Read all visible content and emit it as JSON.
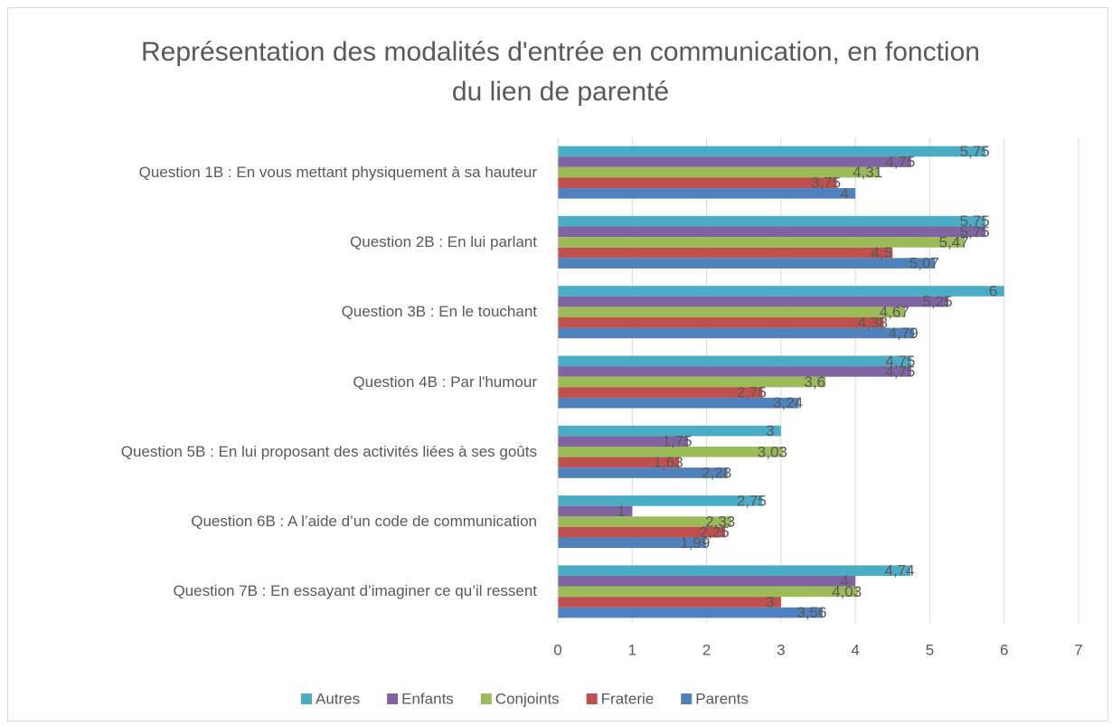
{
  "chart_data": {
    "type": "bar",
    "orientation": "horizontal",
    "title": "Représentation des modalités d'entrée en communication, en fonction du lien de parenté",
    "categories": [
      "Question 1B : En vous mettant physiquement à sa hauteur",
      "Question 2B : En lui parlant",
      "Question 3B : En le touchant",
      "Question 4B : Par l'humour",
      "Question 5B : En lui proposant des activités liées à ses goûts",
      "Question 6B : A l’aide d’un code de communication",
      "Question 7B : En essayant d’imaginer ce qu’il ressent"
    ],
    "series": [
      {
        "name": "Autres",
        "color": "#4bacc6",
        "values": [
          5.75,
          5.75,
          6,
          4.75,
          3,
          2.75,
          4.74
        ],
        "value_labels": [
          "5,75",
          "5,75",
          "6",
          "4,75",
          "3",
          "2,75",
          "4,74"
        ]
      },
      {
        "name": "Enfants",
        "color": "#8064a2",
        "values": [
          4.75,
          5.75,
          5.25,
          4.75,
          1.75,
          1,
          4
        ],
        "value_labels": [
          "4,75",
          "5,75",
          "5,25",
          "4,75",
          "1,75",
          "1",
          "4"
        ]
      },
      {
        "name": "Conjoints",
        "color": "#9bbb59",
        "values": [
          4.31,
          5.47,
          4.67,
          3.6,
          3.03,
          2.33,
          4.03
        ],
        "value_labels": [
          "4,31",
          "5,47",
          "4,67",
          "3,6",
          "3,03",
          "2,33",
          "4,03"
        ]
      },
      {
        "name": "Fraterie",
        "color": "#c0504d",
        "values": [
          3.75,
          4.5,
          4.38,
          2.75,
          1.63,
          2.25,
          3
        ],
        "value_labels": [
          "3,75",
          "4,5",
          "4,38",
          "2,75",
          "1,63",
          "2,25",
          "3"
        ]
      },
      {
        "name": "Parents",
        "color": "#4f81bd",
        "values": [
          4,
          5.07,
          4.79,
          3.24,
          2.28,
          1.99,
          3.56
        ],
        "value_labels": [
          "4",
          "5,07",
          "4,79",
          "3,24",
          "2,28",
          "1,99",
          "3,56"
        ]
      }
    ],
    "xlim": [
      0,
      7
    ],
    "xticks": [
      0,
      1,
      2,
      3,
      4,
      5,
      6,
      7
    ],
    "grid": true,
    "legend": "bottom"
  }
}
